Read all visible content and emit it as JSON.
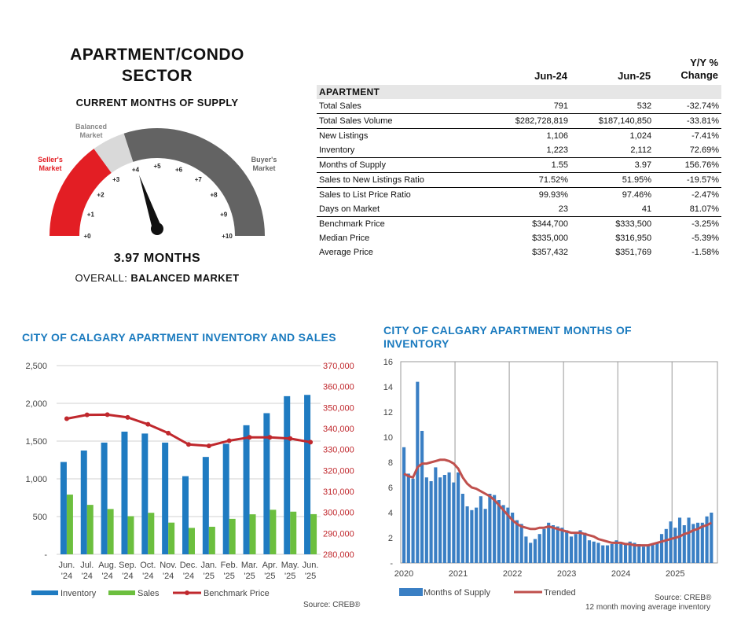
{
  "gauge": {
    "title_line1": "APARTMENT/CONDO",
    "title_line2": "SECTOR",
    "subtitle": "CURRENT MONTHS OF SUPPLY",
    "value_text": "3.97 MONTHS",
    "overall_label": "OVERALL:",
    "overall_value": "BALANCED MARKET",
    "needle_value": 3.97,
    "zones": {
      "sellers": {
        "label1": "Seller's",
        "label2": "Market",
        "from": 0,
        "to": 3,
        "color": "#e31e24"
      },
      "balanced": {
        "label1": "Balanced",
        "label2": "Market",
        "from": 3,
        "to": 4,
        "color": "#d9d9d9"
      },
      "buyers": {
        "label1": "Buyer's",
        "label2": "Market",
        "from": 4,
        "to": 10,
        "color": "#636363"
      }
    },
    "ticks": [
      "+0",
      "+1",
      "+2",
      "+3",
      "+4",
      "+5",
      "+6",
      "+7",
      "+8",
      "+9",
      "+10"
    ]
  },
  "table": {
    "columns": [
      "Jun-24",
      "Jun-25",
      "Y/Y %",
      "Change"
    ],
    "section": "APARTMENT",
    "rows": [
      {
        "label": "Total Sales",
        "a": "791",
        "b": "532",
        "c": "-32.74%",
        "sep": false
      },
      {
        "label": "Total Sales Volume",
        "a": "$282,728,819",
        "b": "$187,140,850",
        "c": "-33.81%",
        "sep": true
      },
      {
        "label": "New Listings",
        "a": "1,106",
        "b": "1,024",
        "c": "-7.41%",
        "sep": true
      },
      {
        "label": "Inventory",
        "a": "1,223",
        "b": "2,112",
        "c": "72.69%",
        "sep": false
      },
      {
        "label": "Months of Supply",
        "a": "1.55",
        "b": "3.97",
        "c": "156.76%",
        "sep": true
      },
      {
        "label": "Sales to New Listings Ratio",
        "a": "71.52%",
        "b": "51.95%",
        "c": "-19.57%",
        "sep": true
      },
      {
        "label": "Sales to List Price Ratio",
        "a": "99.93%",
        "b": "97.46%",
        "c": "-2.47%",
        "sep": true
      },
      {
        "label": "Days on Market",
        "a": "23",
        "b": "41",
        "c": "81.07%",
        "sep": false
      },
      {
        "label": "Benchmark Price",
        "a": "$344,700",
        "b": "$333,500",
        "c": "-3.25%",
        "sep": true
      },
      {
        "label": "Median Price",
        "a": "$335,000",
        "b": "$316,950",
        "c": "-5.39%",
        "sep": false
      },
      {
        "label": "Average Price",
        "a": "$357,432",
        "b": "$351,769",
        "c": "-1.58%",
        "sep": false
      }
    ]
  },
  "chart_data": [
    {
      "type": "bar",
      "title": "CITY OF CALGARY APARTMENT INVENTORY AND SALES",
      "categories": [
        [
          "Jun.",
          "'24"
        ],
        [
          "Jul.",
          "'24"
        ],
        [
          "Aug.",
          "'24"
        ],
        [
          "Sep.",
          "'24"
        ],
        [
          "Oct.",
          "'24"
        ],
        [
          "Nov.",
          "'24"
        ],
        [
          "Dec.",
          "'24"
        ],
        [
          "Jan.",
          "'25"
        ],
        [
          "Feb.",
          "'25"
        ],
        [
          "Mar.",
          "'25"
        ],
        [
          "Apr.",
          "'25"
        ],
        [
          "May.",
          "'25"
        ],
        [
          "Jun.",
          "'25"
        ]
      ],
      "series": [
        {
          "name": "Inventory",
          "type": "bar",
          "axis": "left",
          "color": "#1f7bc1",
          "values": [
            1223,
            1375,
            1480,
            1625,
            1600,
            1480,
            1035,
            1290,
            1465,
            1710,
            1870,
            2095,
            2112
          ]
        },
        {
          "name": "Sales",
          "type": "bar",
          "axis": "left",
          "color": "#6cbf3e",
          "values": [
            791,
            655,
            600,
            505,
            550,
            420,
            350,
            365,
            470,
            530,
            590,
            565,
            532
          ]
        },
        {
          "name": "Benchmark Price",
          "type": "line",
          "axis": "right",
          "color": "#c0282d",
          "values": [
            344700,
            346500,
            346600,
            345300,
            342000,
            337800,
            332400,
            331700,
            334200,
            335800,
            335800,
            335200,
            333500
          ]
        }
      ],
      "y_left": {
        "min": 0,
        "max": 2500,
        "ticks": [
          "-",
          "500",
          "1,000",
          "1,500",
          "2,000",
          "2,500"
        ]
      },
      "y_right": {
        "min": 280000,
        "max": 370000,
        "ticks": [
          "280,000",
          "290,000",
          "300,000",
          "310,000",
          "320,000",
          "330,000",
          "340,000",
          "350,000",
          "360,000",
          "370,000"
        ]
      },
      "source": "Source: CREB®",
      "grid": true,
      "legend": "bottom"
    },
    {
      "type": "bar",
      "title": "CITY OF CALGARY APARTMENT MONTHS OF INVENTORY",
      "x_labels": [
        "2020",
        "2021",
        "2022",
        "2023",
        "2024",
        "2025"
      ],
      "y": {
        "min": 0,
        "max": 16,
        "ticks": [
          "-",
          "2",
          "4",
          "6",
          "8",
          "10",
          "12",
          "14",
          "16"
        ]
      },
      "series": [
        {
          "name": "Months of Supply",
          "type": "bar",
          "color": "#3a7fc4",
          "values": [
            9.2,
            7.1,
            6.7,
            14.4,
            10.5,
            6.8,
            6.5,
            7.6,
            6.8,
            7.0,
            7.2,
            6.4,
            7.2,
            5.5,
            4.5,
            4.2,
            4.4,
            5.3,
            4.3,
            5.5,
            5.4,
            5.0,
            4.6,
            4.4,
            4.0,
            3.4,
            3.1,
            2.1,
            1.6,
            1.9,
            2.3,
            2.7,
            3.2,
            3.0,
            2.9,
            2.8,
            2.6,
            2.1,
            2.3,
            2.6,
            2.4,
            1.8,
            1.7,
            1.6,
            1.4,
            1.4,
            1.5,
            1.8,
            1.5,
            1.6,
            1.7,
            1.6,
            1.5,
            1.3,
            1.4,
            1.5,
            1.6,
            2.3,
            2.7,
            3.3,
            2.8,
            3.6,
            3.0,
            3.6,
            3.1,
            3.2,
            3.2,
            3.7,
            4.0
          ]
        },
        {
          "name": "Trended",
          "type": "line",
          "color": "#c0504d",
          "values": [
            7.1,
            6.9,
            6.8,
            7.6,
            7.9,
            7.9,
            8.0,
            8.1,
            8.2,
            8.2,
            8.1,
            7.9,
            7.5,
            6.8,
            6.3,
            6.0,
            5.9,
            5.7,
            5.5,
            5.3,
            5.0,
            4.6,
            4.2,
            3.8,
            3.4,
            3.1,
            2.9,
            2.8,
            2.7,
            2.7,
            2.8,
            2.8,
            2.9,
            2.8,
            2.7,
            2.6,
            2.5,
            2.4,
            2.4,
            2.4,
            2.3,
            2.2,
            2.1,
            1.9,
            1.8,
            1.7,
            1.6,
            1.6,
            1.6,
            1.5,
            1.5,
            1.4,
            1.4,
            1.4,
            1.4,
            1.5,
            1.6,
            1.7,
            1.8,
            1.9,
            2.0,
            2.1,
            2.3,
            2.4,
            2.6,
            2.7,
            2.9,
            3.0,
            3.2
          ]
        }
      ],
      "source": "Source: CREB®",
      "note": "12 month moving average inventory",
      "grid": true,
      "legend": "bottom"
    }
  ]
}
